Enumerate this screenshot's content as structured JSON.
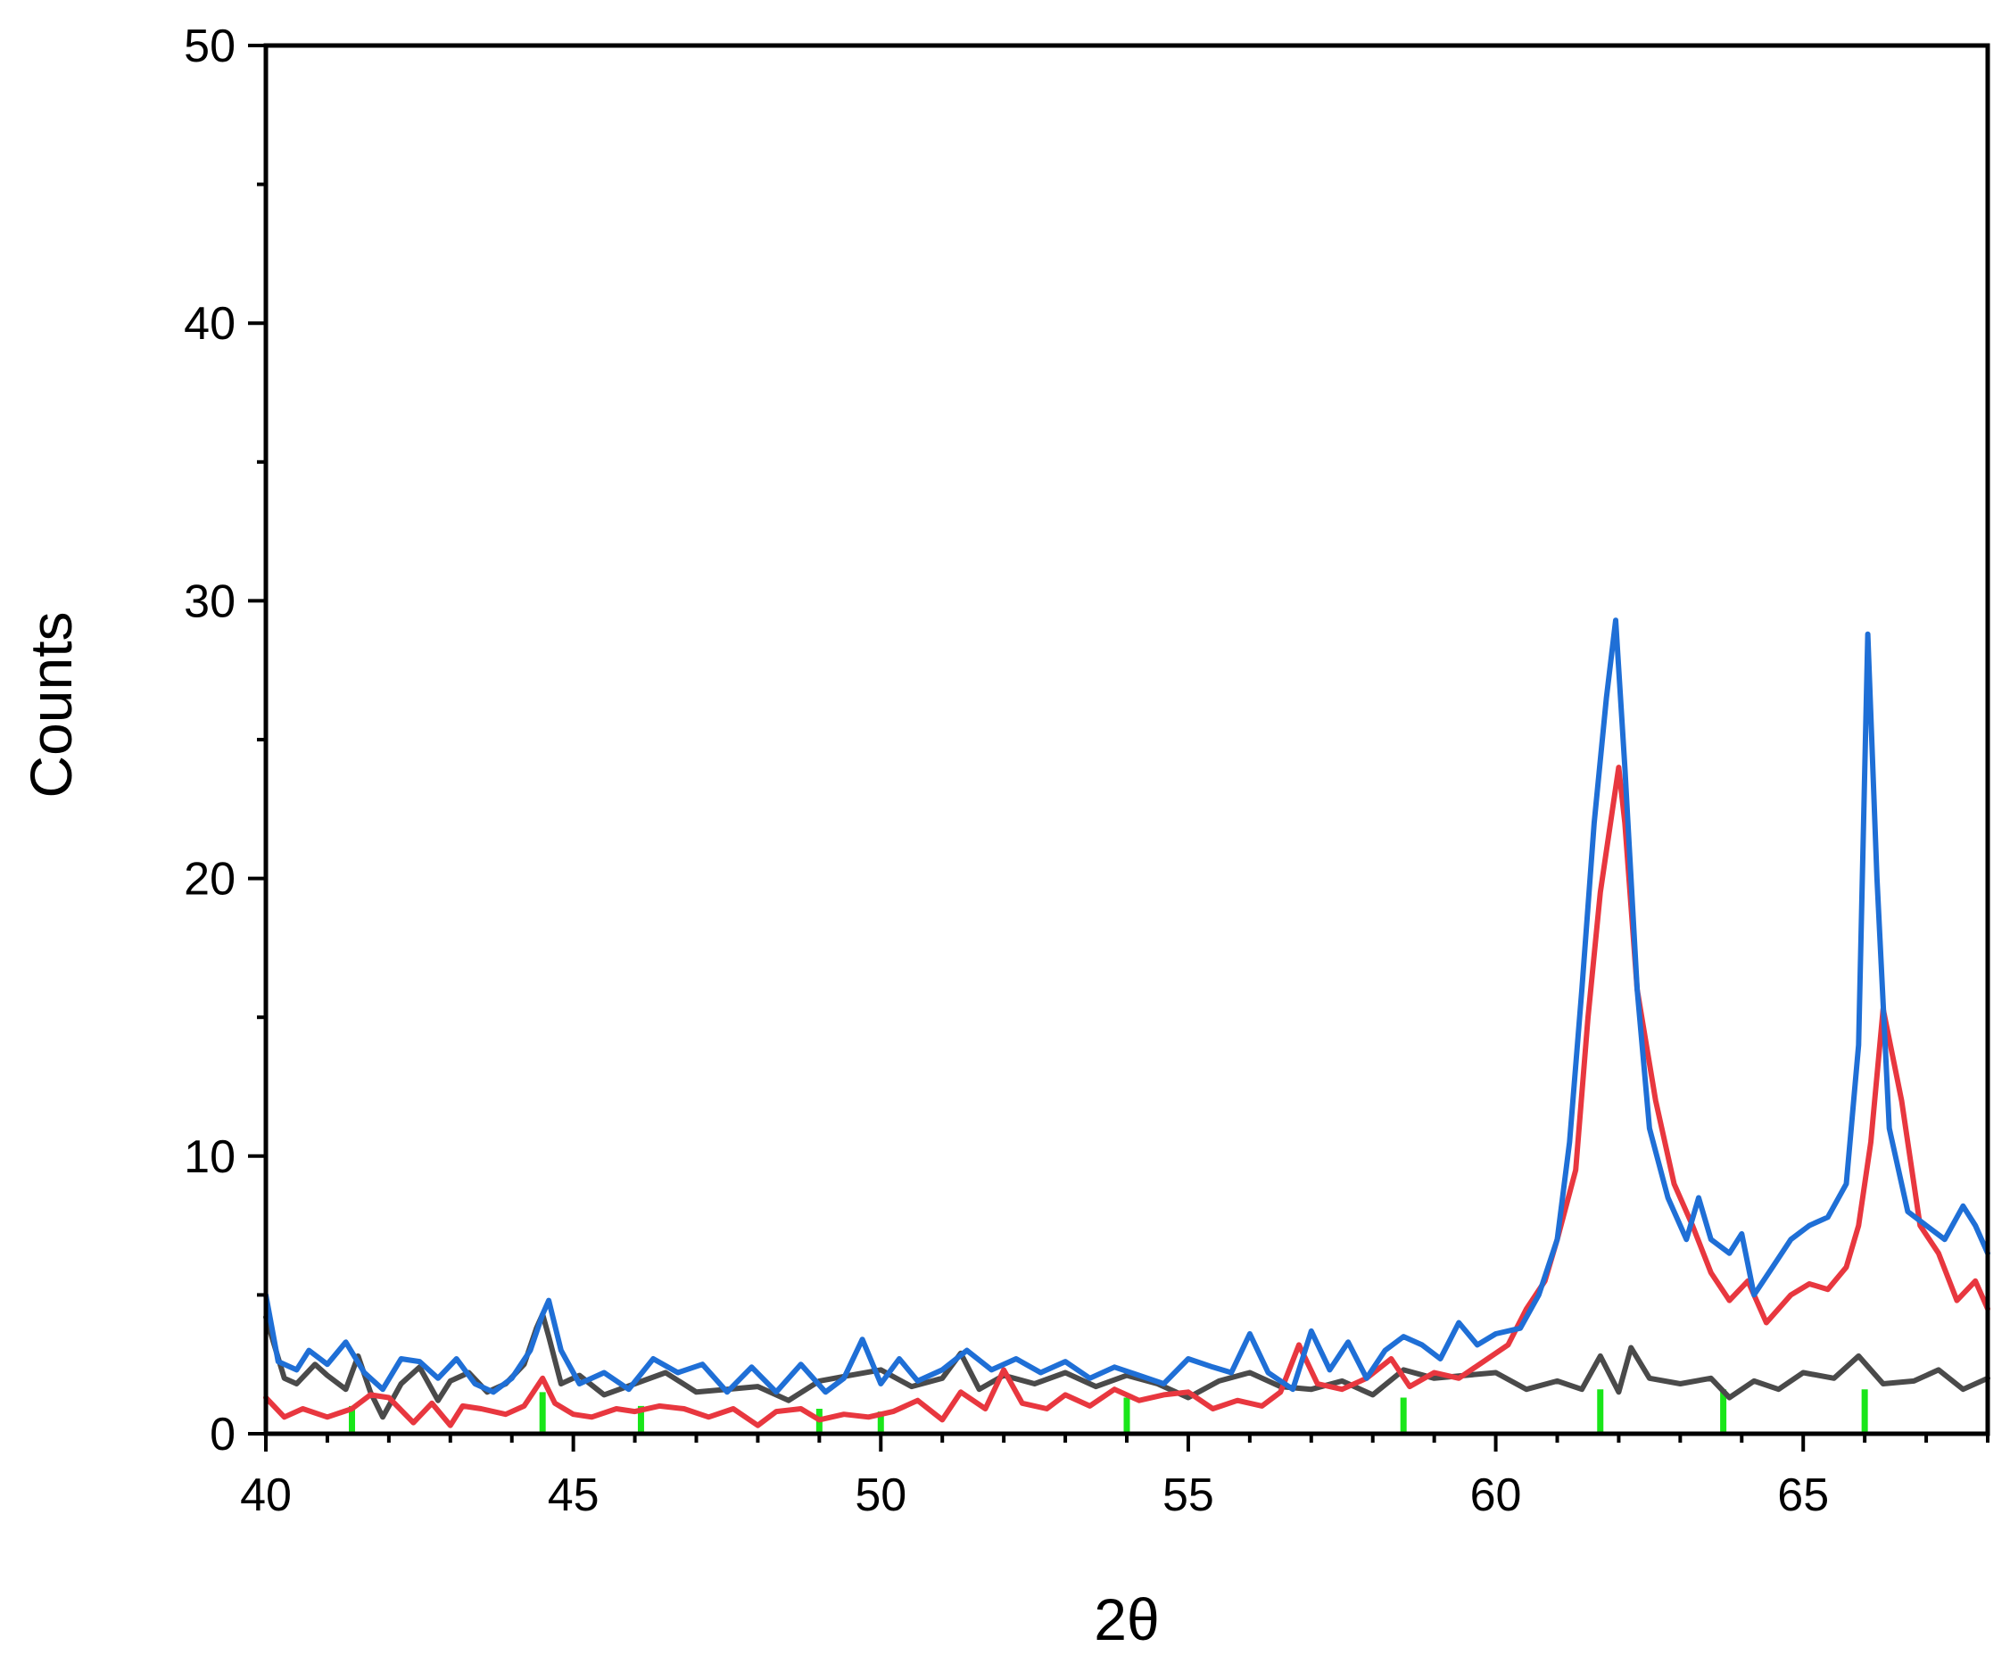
{
  "chart_data": {
    "type": "line",
    "xlabel": "2θ",
    "ylabel": "Counts",
    "xlim": [
      40,
      68
    ],
    "ylim": [
      0,
      50
    ],
    "x_ticks": [
      40,
      45,
      50,
      55,
      60,
      65
    ],
    "y_ticks": [
      0,
      10,
      20,
      30,
      40,
      50
    ],
    "x_minor_step": 1,
    "y_minor_step": 5,
    "grid": false,
    "legend": "none",
    "series": [
      {
        "color": "#4a4a4a",
        "x": [
          40,
          40.3,
          40.5,
          40.8,
          41,
          41.3,
          41.5,
          41.7,
          41.9,
          42.2,
          42.5,
          42.8,
          43,
          43.3,
          43.6,
          43.9,
          44.2,
          44.4,
          44.5,
          44.6,
          44.8,
          45.1,
          45.5,
          46,
          46.5,
          47,
          47.5,
          48,
          48.5,
          49,
          49.5,
          50,
          50.5,
          51,
          51.3,
          51.6,
          52,
          52.5,
          53,
          53.5,
          54,
          54.5,
          55,
          55.5,
          56,
          56.5,
          57,
          57.5,
          58,
          58.5,
          59,
          59.5,
          60,
          60.5,
          61,
          61.4,
          61.7,
          62,
          62.2,
          62.5,
          63,
          63.5,
          63.8,
          64.2,
          64.6,
          65,
          65.5,
          65.9,
          66.3,
          66.8,
          67.2,
          67.6,
          68
        ],
        "y": [
          4.2,
          2.0,
          1.8,
          2.5,
          2.1,
          1.6,
          2.8,
          1.5,
          0.6,
          1.8,
          2.4,
          1.2,
          1.9,
          2.2,
          1.5,
          1.8,
          2.5,
          3.8,
          4.3,
          3.5,
          1.8,
          2.1,
          1.4,
          1.8,
          2.2,
          1.5,
          1.6,
          1.7,
          1.2,
          1.9,
          2.1,
          2.3,
          1.7,
          2.0,
          2.9,
          1.6,
          2.1,
          1.8,
          2.2,
          1.7,
          2.1,
          1.8,
          1.3,
          1.9,
          2.2,
          1.7,
          1.6,
          1.9,
          1.4,
          2.3,
          2.0,
          2.1,
          2.2,
          1.6,
          1.9,
          1.6,
          2.8,
          1.5,
          3.1,
          2.0,
          1.8,
          2.0,
          1.3,
          1.9,
          1.6,
          2.2,
          2.0,
          2.8,
          1.8,
          1.9,
          2.3,
          1.6,
          2.0
        ]
      },
      {
        "color": "#e8373f",
        "x": [
          40,
          40.3,
          40.6,
          41,
          41.4,
          41.7,
          42,
          42.4,
          42.7,
          43,
          43.2,
          43.5,
          43.9,
          44.2,
          44.5,
          44.7,
          45,
          45.3,
          45.7,
          46,
          46.4,
          46.8,
          47.2,
          47.6,
          48,
          48.3,
          48.7,
          49,
          49.4,
          49.8,
          50.2,
          50.6,
          51,
          51.3,
          51.7,
          52,
          52.3,
          52.7,
          53,
          53.4,
          53.8,
          54.2,
          54.6,
          55,
          55.4,
          55.8,
          56.2,
          56.5,
          56.8,
          57.1,
          57.5,
          57.9,
          58.3,
          58.6,
          59,
          59.4,
          59.8,
          60.2,
          60.5,
          60.8,
          61,
          61.3,
          61.5,
          61.7,
          61.9,
          62,
          62.1,
          62.3,
          62.6,
          62.9,
          63.2,
          63.5,
          63.8,
          64.1,
          64.4,
          64.8,
          65.1,
          65.4,
          65.7,
          65.9,
          66.1,
          66.3,
          66.6,
          66.9,
          67.2,
          67.5,
          67.8,
          68
        ],
        "y": [
          1.3,
          0.6,
          0.9,
          0.6,
          0.9,
          1.4,
          1.3,
          0.4,
          1.1,
          0.3,
          1.0,
          0.9,
          0.7,
          1.0,
          2.0,
          1.1,
          0.7,
          0.6,
          0.9,
          0.8,
          1.0,
          0.9,
          0.6,
          0.9,
          0.3,
          0.8,
          0.9,
          0.5,
          0.7,
          0.6,
          0.8,
          1.2,
          0.5,
          1.5,
          0.9,
          2.3,
          1.1,
          0.9,
          1.4,
          1.0,
          1.6,
          1.2,
          1.4,
          1.5,
          0.9,
          1.2,
          1.0,
          1.5,
          3.2,
          1.8,
          1.6,
          2.0,
          2.7,
          1.7,
          2.2,
          2.0,
          2.6,
          3.2,
          4.5,
          5.5,
          7.0,
          9.5,
          15.0,
          19.5,
          22.5,
          24.0,
          22.0,
          16.0,
          12.0,
          9.0,
          7.5,
          5.8,
          4.8,
          5.5,
          4.0,
          5.0,
          5.4,
          5.2,
          6.0,
          7.5,
          10.5,
          15.3,
          12.0,
          7.5,
          6.5,
          4.8,
          5.5,
          4.5
        ]
      },
      {
        "color": "#1f6fd6",
        "x": [
          40,
          40.2,
          40.5,
          40.7,
          41,
          41.3,
          41.6,
          41.9,
          42.2,
          42.5,
          42.8,
          43.1,
          43.4,
          43.7,
          44,
          44.3,
          44.5,
          44.6,
          44.8,
          45.1,
          45.5,
          45.9,
          46.3,
          46.7,
          47.1,
          47.5,
          47.9,
          48.3,
          48.7,
          49.1,
          49.4,
          49.7,
          50,
          50.3,
          50.6,
          51,
          51.4,
          51.8,
          52.2,
          52.6,
          53,
          53.4,
          53.8,
          54.2,
          54.6,
          55,
          55.4,
          55.7,
          56,
          56.3,
          56.7,
          57,
          57.3,
          57.6,
          57.9,
          58.2,
          58.5,
          58.8,
          59.1,
          59.4,
          59.7,
          60,
          60.4,
          60.7,
          61,
          61.2,
          61.4,
          61.6,
          61.8,
          61.95,
          62.1,
          62.3,
          62.5,
          62.8,
          63.1,
          63.3,
          63.5,
          63.8,
          64,
          64.2,
          64.5,
          64.8,
          65.1,
          65.4,
          65.7,
          65.9,
          66.05,
          66.2,
          66.4,
          66.7,
          67,
          67.3,
          67.6,
          67.8,
          68
        ],
        "y": [
          5.0,
          2.6,
          2.3,
          3.0,
          2.5,
          3.3,
          2.2,
          1.6,
          2.7,
          2.6,
          2.0,
          2.7,
          1.8,
          1.5,
          2.0,
          3.0,
          4.3,
          4.8,
          3.0,
          1.8,
          2.2,
          1.6,
          2.7,
          2.2,
          2.5,
          1.5,
          2.4,
          1.5,
          2.5,
          1.5,
          2.0,
          3.4,
          1.8,
          2.7,
          1.9,
          2.3,
          3.0,
          2.3,
          2.7,
          2.2,
          2.6,
          2.0,
          2.4,
          2.1,
          1.8,
          2.7,
          2.4,
          2.2,
          3.6,
          2.2,
          1.6,
          3.7,
          2.3,
          3.3,
          2.0,
          3.0,
          3.5,
          3.2,
          2.7,
          4.0,
          3.2,
          3.6,
          3.8,
          5.0,
          7.0,
          10.5,
          16.0,
          22.0,
          26.5,
          29.3,
          24.0,
          16.0,
          11.0,
          8.5,
          7.0,
          8.5,
          7.0,
          6.5,
          7.2,
          5.0,
          6.0,
          7.0,
          7.5,
          7.8,
          9.0,
          14.0,
          28.8,
          20.0,
          11.0,
          8.0,
          7.5,
          7.0,
          8.2,
          7.5,
          6.5
        ]
      }
    ],
    "reference_markers": {
      "color": "#19e619",
      "x": [
        41.4,
        44.5,
        46.1,
        49.0,
        50.0,
        54.0,
        58.5,
        61.7,
        63.7,
        66.0
      ],
      "heights": [
        1.0,
        1.5,
        1.0,
        0.9,
        0.8,
        1.3,
        1.3,
        1.6,
        1.6,
        1.6
      ]
    }
  }
}
